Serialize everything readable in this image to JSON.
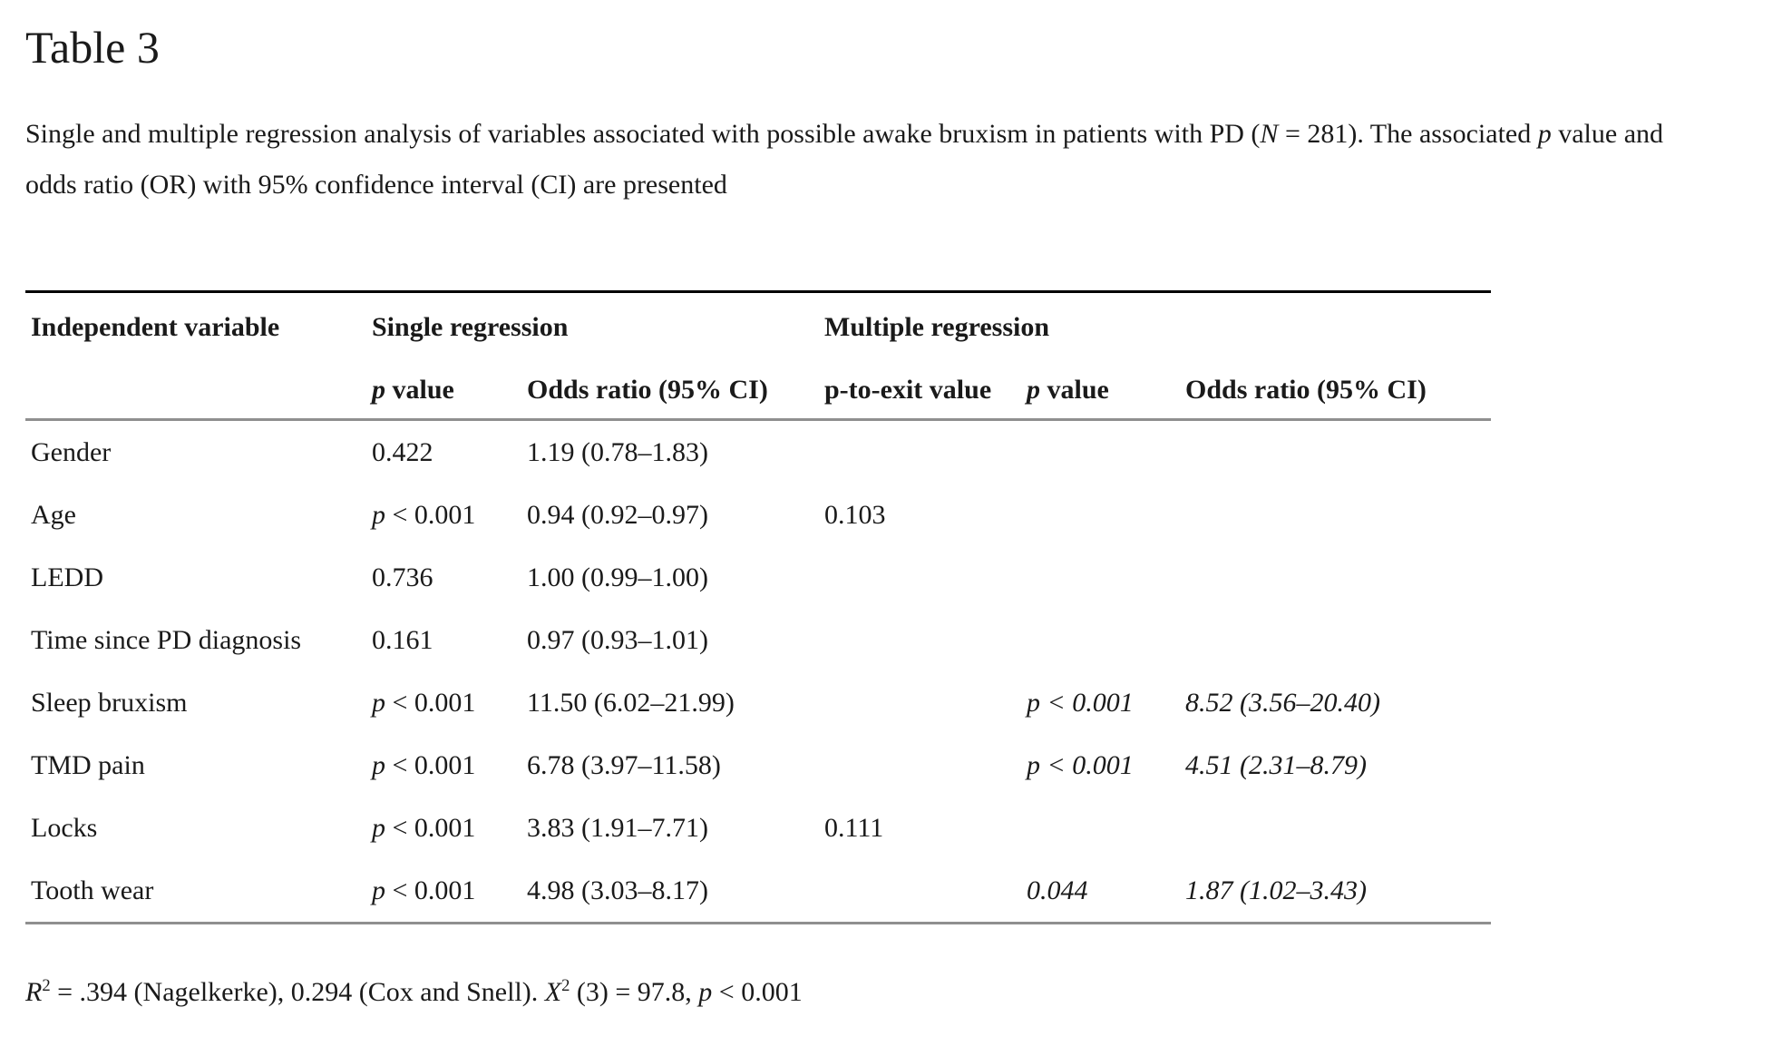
{
  "title": "Table 3",
  "caption": {
    "line1": [
      {
        "t": "Single and multiple regression analysis of variables associated with possible awake bruxism in patients with PD ("
      },
      {
        "t": "N",
        "i": true
      },
      {
        "t": " = 281). The associated "
      },
      {
        "t": "p",
        "i": true
      },
      {
        "t": " value and"
      }
    ],
    "line2": [
      {
        "t": "odds ratio (OR) with 95% confidence interval (CI) are presented"
      }
    ]
  },
  "table": {
    "group_headers": [
      {
        "label": "Independent variable",
        "span": 1
      },
      {
        "label": "Single regression",
        "span": 2
      },
      {
        "label": "Multiple regression",
        "span": 3
      }
    ],
    "column_keys": [
      "independent-variable",
      "single-p-value",
      "single-odds-ratio",
      "p-to-exit-value",
      "multiple-p-value",
      "multiple-odds-ratio"
    ],
    "column_headers": [
      {
        "segments": []
      },
      {
        "segments": [
          {
            "t": "p",
            "i": true
          },
          {
            "t": " value"
          }
        ]
      },
      {
        "segments": [
          {
            "t": "Odds ratio (95% CI)"
          }
        ]
      },
      {
        "segments": [
          {
            "t": "p-to-exit value"
          }
        ]
      },
      {
        "segments": [
          {
            "t": "p",
            "i": true
          },
          {
            "t": " value"
          }
        ]
      },
      {
        "segments": [
          {
            "t": "Odds ratio (95% CI)"
          }
        ]
      }
    ],
    "rows": [
      {
        "cells": [
          [
            {
              "t": "Gender"
            }
          ],
          [
            {
              "t": "0.422"
            }
          ],
          [
            {
              "t": "1.19 (0.78–1.83)"
            }
          ],
          [],
          [],
          []
        ]
      },
      {
        "cells": [
          [
            {
              "t": "Age"
            }
          ],
          [
            {
              "t": "p",
              "i": true
            },
            {
              "t": " < 0.001"
            }
          ],
          [
            {
              "t": "0.94 (0.92–0.97)"
            }
          ],
          [
            {
              "t": "0.103"
            }
          ],
          [],
          []
        ]
      },
      {
        "cells": [
          [
            {
              "t": "LEDD"
            }
          ],
          [
            {
              "t": "0.736"
            }
          ],
          [
            {
              "t": "1.00 (0.99–1.00)"
            }
          ],
          [],
          [],
          []
        ]
      },
      {
        "cells": [
          [
            {
              "t": "Time since PD diagnosis"
            }
          ],
          [
            {
              "t": "0.161"
            }
          ],
          [
            {
              "t": "0.97 (0.93–1.01)"
            }
          ],
          [],
          [],
          []
        ]
      },
      {
        "cells": [
          [
            {
              "t": "Sleep bruxism"
            }
          ],
          [
            {
              "t": "p",
              "i": true
            },
            {
              "t": " < 0.001"
            }
          ],
          [
            {
              "t": "11.50 (6.02–21.99)"
            }
          ],
          [],
          [
            {
              "t": "p < 0.001",
              "i": true
            }
          ],
          [
            {
              "t": "8.52 (3.56–20.40)",
              "i": true
            }
          ]
        ]
      },
      {
        "cells": [
          [
            {
              "t": "TMD pain"
            }
          ],
          [
            {
              "t": "p",
              "i": true
            },
            {
              "t": " < 0.001"
            }
          ],
          [
            {
              "t": "6.78 (3.97–11.58)"
            }
          ],
          [],
          [
            {
              "t": "p < 0.001",
              "i": true
            }
          ],
          [
            {
              "t": "4.51 (2.31–8.79)",
              "i": true
            }
          ]
        ]
      },
      {
        "cells": [
          [
            {
              "t": "Locks"
            }
          ],
          [
            {
              "t": "p",
              "i": true
            },
            {
              "t": " < 0.001"
            }
          ],
          [
            {
              "t": "3.83 (1.91–7.71)"
            }
          ],
          [
            {
              "t": "0.111"
            }
          ],
          [],
          []
        ]
      },
      {
        "cells": [
          [
            {
              "t": "Tooth wear"
            }
          ],
          [
            {
              "t": "p",
              "i": true
            },
            {
              "t": " < 0.001"
            }
          ],
          [
            {
              "t": "4.98 (3.03–8.17)"
            }
          ],
          [],
          [
            {
              "t": "0.044",
              "i": true
            }
          ],
          [
            {
              "t": "1.87 (1.02–3.43)",
              "i": true
            }
          ]
        ]
      }
    ]
  },
  "footnote": {
    "segments": [
      {
        "t": "R",
        "i": true
      },
      {
        "t": "2",
        "sup": true
      },
      {
        "t": " = .394 (Nagelkerke), 0.294 (Cox and Snell). "
      },
      {
        "t": "X",
        "i": true
      },
      {
        "t": "2",
        "sup": true
      },
      {
        "t": " (3) = 97.8, "
      },
      {
        "t": "p",
        "i": true
      },
      {
        "t": " < 0.001"
      }
    ]
  },
  "colors": {
    "background": "#ffffff",
    "text": "#1a1a1a",
    "rule_top": "#000000",
    "rule_gray": "#8f8f8f"
  }
}
